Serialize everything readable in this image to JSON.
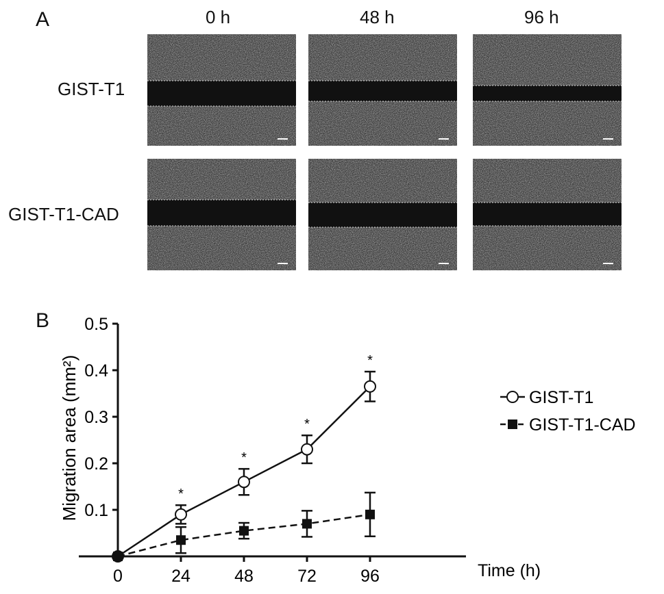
{
  "panel_a": {
    "letter": "A",
    "columns": [
      "0 h",
      "48 h",
      "96 h"
    ],
    "rows": [
      "GIST-T1",
      "GIST-T1-CAD"
    ]
  },
  "panel_b": {
    "letter": "B"
  },
  "chart_data": {
    "type": "line",
    "x": [
      0,
      24,
      48,
      72,
      96
    ],
    "xlabel": "Time (h)",
    "ylabel": "Migration area (mm²)",
    "ylim": [
      0,
      0.5
    ],
    "yticks": [
      "0.1",
      "0.2",
      "0.3",
      "0.4",
      "0.5"
    ],
    "xticks": [
      "0",
      "24",
      "48",
      "72",
      "96"
    ],
    "grid": false,
    "legend": "right",
    "series": [
      {
        "name": "GIST-T1",
        "marker": "open-circle",
        "line": "solid",
        "values": [
          0,
          0.09,
          0.16,
          0.23,
          0.365
        ],
        "errors": [
          0,
          0.02,
          0.028,
          0.03,
          0.032
        ],
        "significance": [
          "",
          "*",
          "*",
          "*",
          "*"
        ]
      },
      {
        "name": "GIST-T1-CAD",
        "marker": "filled-square",
        "line": "dashed",
        "values": [
          0,
          0.035,
          0.055,
          0.07,
          0.09
        ],
        "errors": [
          0,
          0.028,
          0.017,
          0.028,
          0.047
        ]
      }
    ]
  }
}
